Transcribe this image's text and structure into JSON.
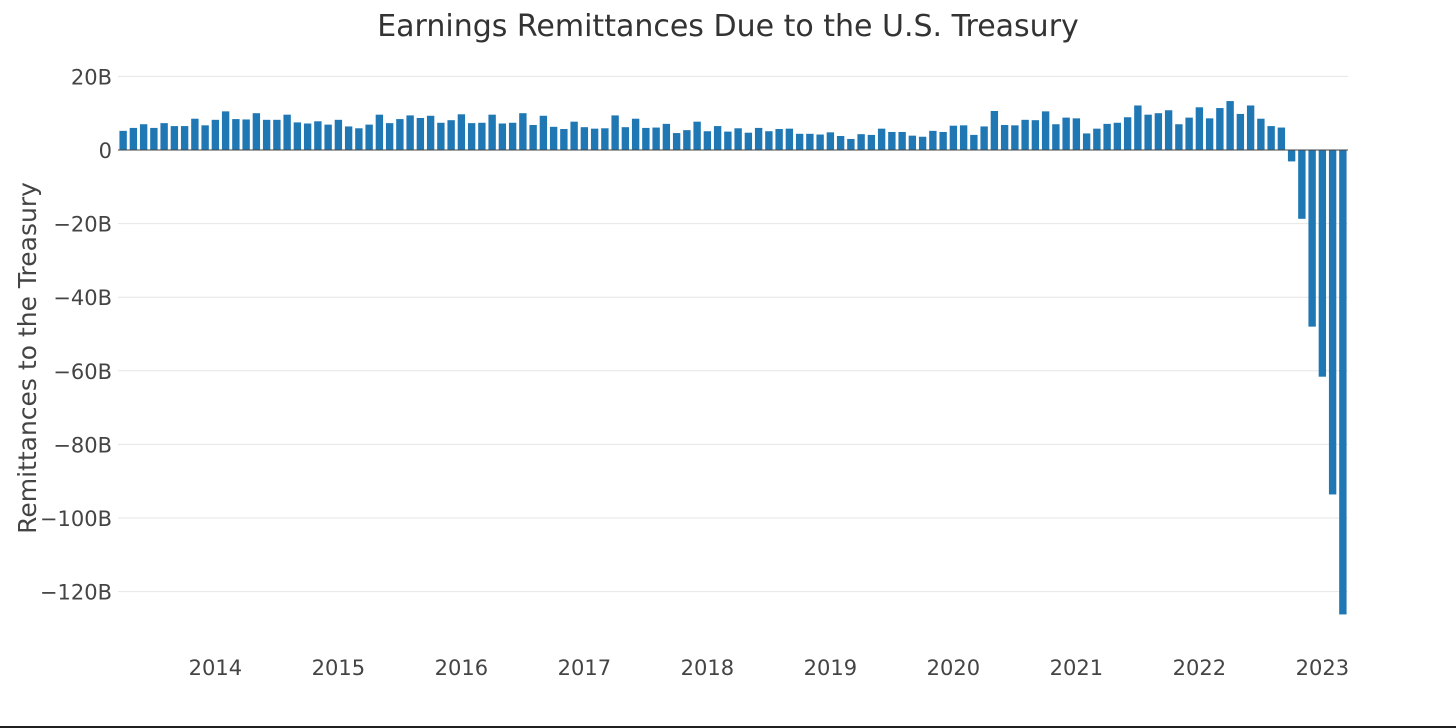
{
  "chart_data": {
    "type": "bar",
    "title": "Earnings Remittances Due to the U.S. Treasury",
    "xlabel": "",
    "ylabel": "Remittances to the Treasury",
    "x_tick_labels": [
      "2014",
      "2015",
      "2016",
      "2017",
      "2018",
      "2019",
      "2020",
      "2021",
      "2022",
      "2023"
    ],
    "y_ticks": [
      20,
      0,
      -20,
      -40,
      -60,
      -80,
      -100,
      -120
    ],
    "y_tick_labels": [
      "20B",
      "0",
      "−20B",
      "−40B",
      "−60B",
      "−80B",
      "−100B",
      "−120B"
    ],
    "ylim": [
      -130,
      23
    ],
    "unit": "billions USD",
    "grid": true,
    "colors": {
      "bar": "#1f77b4",
      "grid": "#e6e6e6",
      "zero_line": "#444444"
    },
    "x_start": "2013-04",
    "frequency": "monthly",
    "values": [
      5.2,
      6.0,
      7.0,
      6.0,
      7.3,
      6.5,
      6.5,
      8.5,
      6.7,
      8.2,
      10.5,
      8.4,
      8.3,
      10.0,
      8.2,
      8.2,
      9.6,
      7.5,
      7.2,
      7.8,
      6.9,
      8.2,
      6.4,
      5.9,
      6.9,
      9.6,
      7.3,
      8.4,
      9.4,
      8.7,
      9.3,
      7.4,
      8.1,
      9.7,
      7.3,
      7.4,
      9.6,
      7.2,
      7.4,
      10.0,
      6.8,
      9.3,
      6.3,
      5.7,
      7.7,
      6.2,
      5.8,
      5.9,
      9.4,
      6.2,
      8.5,
      6.0,
      6.1,
      7.1,
      4.6,
      5.4,
      7.7,
      5.1,
      6.5,
      5.0,
      5.9,
      4.7,
      6.0,
      5.1,
      5.7,
      5.8,
      4.4,
      4.4,
      4.2,
      4.8,
      3.8,
      3.0,
      4.3,
      4.1,
      5.8,
      4.9,
      4.9,
      3.9,
      3.6,
      5.2,
      4.9,
      6.6,
      6.7,
      4.1,
      6.4,
      10.6,
      6.8,
      6.7,
      8.2,
      8.1,
      10.5,
      7.0,
      8.8,
      8.6,
      4.5,
      5.8,
      7.1,
      7.4,
      8.9,
      12.1,
      9.6,
      10.0,
      10.8,
      7.0,
      8.8,
      11.6,
      8.6,
      11.4,
      13.3,
      9.8,
      12.1,
      8.5,
      6.5,
      6.1,
      -3.1,
      -18.7,
      -48.0,
      -61.6,
      -93.6,
      -126.2
    ]
  }
}
